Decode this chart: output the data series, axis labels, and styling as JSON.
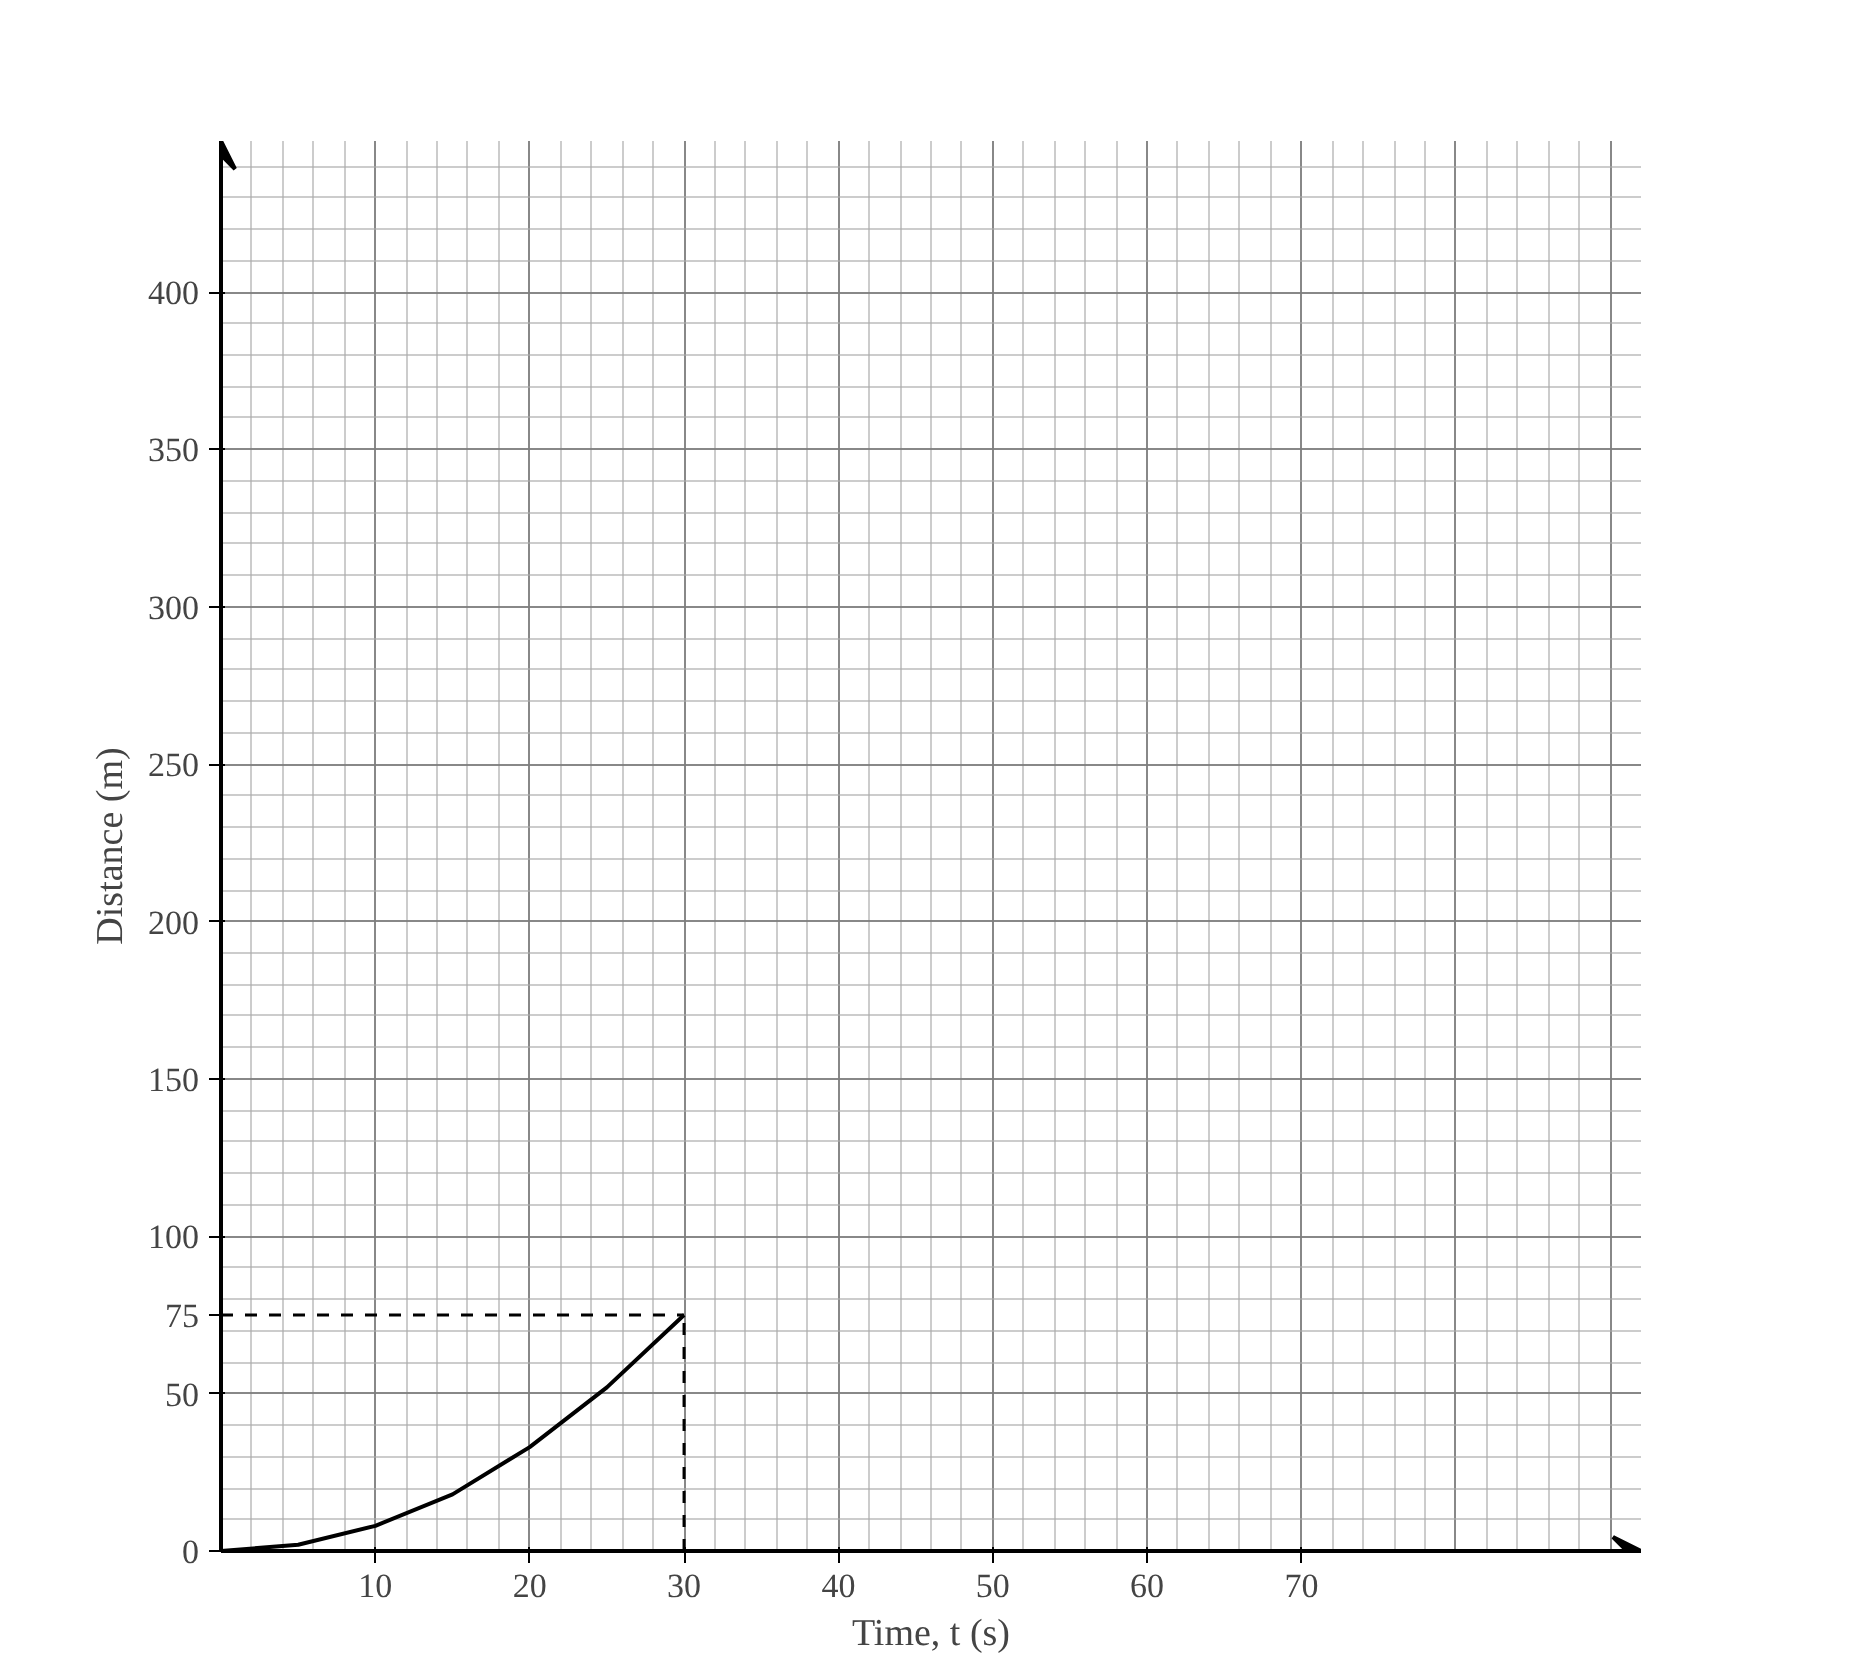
{
  "chart_data": {
    "type": "line",
    "xlabel": "Time, t (s)",
    "ylabel": "Distance (m)",
    "x": [
      0,
      5,
      10,
      15,
      20,
      25,
      30
    ],
    "series": [
      {
        "color": "#000000",
        "values": [
          0,
          2,
          8,
          18,
          33,
          52,
          75
        ]
      }
    ],
    "xlim": [
      0,
      92
    ],
    "ylim": [
      0,
      448
    ],
    "xticks": [
      10,
      20,
      30,
      40,
      50,
      60,
      70
    ],
    "yticks": [
      0,
      50,
      75,
      100,
      150,
      200,
      250,
      300,
      350,
      400
    ],
    "ref_lines": [
      {
        "axis": "y",
        "value": 75,
        "line_style": "dashed"
      },
      {
        "axis": "x",
        "value": 30,
        "line_style": "dashed"
      }
    ],
    "grid": true
  }
}
